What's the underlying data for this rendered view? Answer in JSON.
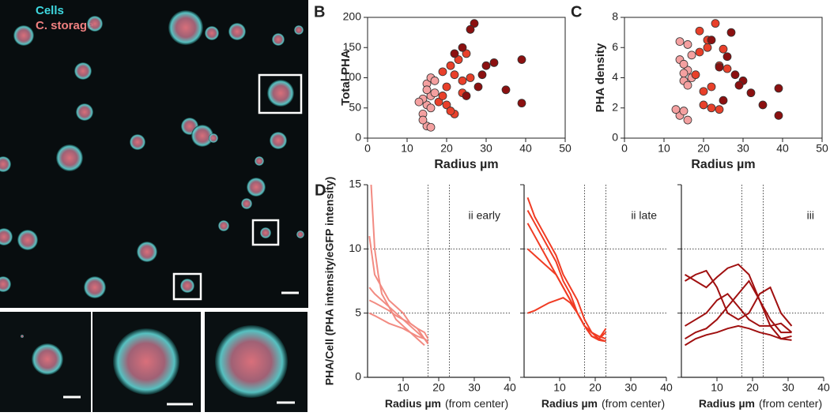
{
  "image": {
    "labels": [
      "Cells",
      "C. storage"
    ]
  },
  "chart_data": [
    {
      "type": "scatter",
      "panel": "B",
      "xlabel": "Radius µm",
      "ylabel": "Total PHA",
      "xlim": [
        0,
        50
      ],
      "ylim": [
        0,
        200
      ],
      "xticks": [
        0,
        10,
        20,
        30,
        40,
        50
      ],
      "yticks": [
        0,
        50,
        100,
        150,
        200
      ],
      "series": [
        {
          "color": "#f4a0a0",
          "x": [
            14,
            15,
            15,
            16,
            14,
            15,
            16,
            17,
            14,
            16,
            17,
            15,
            13,
            16
          ],
          "values": [
            40,
            20,
            55,
            70,
            65,
            90,
            100,
            75,
            30,
            50,
            95,
            80,
            60,
            18
          ]
        },
        {
          "color": "#e8402a",
          "x": [
            18,
            19,
            20,
            21,
            22,
            23,
            24,
            19,
            25,
            22,
            20,
            24,
            26,
            21
          ],
          "values": [
            60,
            110,
            85,
            120,
            40,
            130,
            95,
            70,
            140,
            105,
            55,
            75,
            100,
            45
          ]
        },
        {
          "color": "#8b1010",
          "x": [
            22,
            24,
            25,
            27,
            28,
            30,
            32,
            35,
            39,
            39,
            26,
            29
          ],
          "values": [
            140,
            150,
            70,
            190,
            85,
            120,
            125,
            80,
            130,
            58,
            180,
            105
          ]
        }
      ]
    },
    {
      "type": "scatter",
      "panel": "C",
      "xlabel": "Radius µm",
      "ylabel": "PHA density",
      "xlim": [
        0,
        50
      ],
      "ylim": [
        0,
        8
      ],
      "xticks": [
        0,
        10,
        20,
        30,
        40,
        50
      ],
      "yticks": [
        0,
        2,
        4,
        6,
        8
      ],
      "series": [
        {
          "color": "#f4a0a0",
          "x": [
            14,
            15,
            15,
            16,
            14,
            15,
            16,
            17,
            14,
            16,
            17,
            15,
            13,
            16
          ],
          "values": [
            1.5,
            1.8,
            3.8,
            4.5,
            5.2,
            4.9,
            6.2,
            4.0,
            6.4,
            3.5,
            5.5,
            4.3,
            1.9,
            1.2
          ]
        },
        {
          "color": "#e8402a",
          "x": [
            18,
            19,
            20,
            21,
            22,
            23,
            24,
            19,
            25,
            22,
            20,
            24,
            26,
            21
          ],
          "values": [
            4.2,
            5.7,
            3.1,
            6.5,
            2.0,
            7.6,
            4.8,
            7.1,
            5.9,
            3.4,
            2.2,
            1.9,
            4.6,
            6.0
          ]
        },
        {
          "color": "#8b1010",
          "x": [
            22,
            24,
            25,
            27,
            28,
            30,
            32,
            35,
            39,
            39,
            26,
            29
          ],
          "values": [
            6.5,
            4.7,
            2.5,
            7.0,
            4.2,
            3.8,
            3.0,
            2.2,
            3.3,
            1.5,
            5.4,
            3.5
          ]
        }
      ]
    },
    {
      "type": "line",
      "panel": "D",
      "xlabel": "Radius µm",
      "xlabel_note": "(from center)",
      "ylabel": "PHA/Cell (PHA intensity/eGFP intensity)",
      "xlim": [
        0,
        40
      ],
      "ylim": [
        0,
        15
      ],
      "xticks": [
        10,
        20,
        30,
        40
      ],
      "yticks": [
        0,
        5,
        10,
        15
      ],
      "grid": true,
      "vlines": [
        17,
        23
      ],
      "panels": [
        {
          "label": "ii early",
          "series": [
            {
              "color": "#f28b82",
              "x": [
                0.5,
                2,
                4,
                6,
                8,
                10,
                12,
                14,
                16,
                17
              ],
              "values": [
                11,
                8,
                7,
                6,
                5.5,
                5,
                4.2,
                3.8,
                3,
                2.6
              ]
            },
            {
              "color": "#f28b82",
              "x": [
                0.5,
                2,
                4,
                6,
                8,
                10,
                12,
                14,
                16,
                17
              ],
              "values": [
                7,
                6.5,
                6,
                5.5,
                5,
                4.5,
                4,
                3.5,
                3,
                2.8
              ]
            },
            {
              "color": "#f28b82",
              "x": [
                1,
                2,
                3,
                4,
                6,
                8,
                10,
                12,
                14,
                16
              ],
              "values": [
                15,
                10,
                8,
                6.5,
                5.5,
                4.5,
                4,
                3.5,
                3,
                2.5
              ]
            },
            {
              "color": "#f28b82",
              "x": [
                0.5,
                2,
                4,
                6,
                8,
                10,
                12,
                14,
                16,
                17
              ],
              "values": [
                5,
                4.8,
                4.5,
                4.2,
                4,
                3.8,
                3.5,
                3.2,
                3,
                2.7
              ]
            },
            {
              "color": "#f28b82",
              "x": [
                0.5,
                2,
                4,
                6,
                8,
                10,
                12,
                14,
                16,
                17
              ],
              "values": [
                6,
                5.8,
                5.5,
                5.2,
                4.8,
                4.5,
                4.2,
                3.8,
                3.5,
                3
              ]
            }
          ]
        },
        {
          "label": "ii late",
          "series": [
            {
              "color": "#f03c24",
              "x": [
                1,
                3,
                5,
                7,
                9,
                11,
                13,
                15,
                17,
                19,
                21,
                23
              ],
              "values": [
                14,
                12.5,
                11.5,
                10.5,
                9.5,
                8,
                7,
                6,
                4.5,
                3.5,
                3,
                2.8
              ]
            },
            {
              "color": "#f03c24",
              "x": [
                1,
                3,
                5,
                7,
                9,
                11,
                13,
                15,
                17,
                19,
                21,
                23
              ],
              "values": [
                13,
                12,
                11,
                10,
                9,
                7.5,
                6.5,
                5,
                4,
                3.2,
                2.9,
                2.8
              ]
            },
            {
              "color": "#f03c24",
              "x": [
                1,
                3,
                5,
                7,
                9,
                11,
                13,
                15,
                17,
                19,
                21,
                23
              ],
              "values": [
                12,
                11,
                10,
                9,
                8,
                7,
                6,
                5,
                4,
                3.5,
                3,
                3.5
              ]
            },
            {
              "color": "#f03c24",
              "x": [
                1,
                3,
                5,
                7,
                9,
                11,
                13,
                15,
                17,
                19,
                21,
                23
              ],
              "values": [
                5,
                5.2,
                5.5,
                5.8,
                6,
                6.2,
                5.8,
                5,
                4,
                3.5,
                3.2,
                3
              ]
            },
            {
              "color": "#f03c24",
              "x": [
                1,
                3,
                5,
                7,
                9,
                11,
                13,
                15,
                17,
                19,
                21,
                23
              ],
              "values": [
                10,
                9.5,
                9,
                8.5,
                8,
                7,
                6,
                5,
                4,
                3.2,
                3,
                3.8
              ]
            }
          ]
        },
        {
          "label": "iii",
          "series": [
            {
              "color": "#a01010",
              "x": [
                1,
                4,
                7,
                10,
                13,
                16,
                19,
                22,
                25,
                28,
                31
              ],
              "values": [
                8,
                7.5,
                7,
                7.8,
                8.5,
                8.8,
                8,
                6,
                4.5,
                3.5,
                3.5
              ]
            },
            {
              "color": "#a01010",
              "x": [
                1,
                4,
                7,
                10,
                13,
                16,
                19,
                22,
                25,
                28,
                31
              ],
              "values": [
                4,
                4.5,
                5,
                6,
                6.5,
                5.5,
                4.5,
                4,
                4,
                4.2,
                3.5
              ]
            },
            {
              "color": "#a01010",
              "x": [
                1,
                4,
                7,
                10,
                13,
                16,
                19,
                22,
                25,
                28,
                31
              ],
              "values": [
                3,
                3.5,
                3.8,
                4.5,
                5.5,
                6.5,
                7.5,
                6,
                4,
                3,
                3.2
              ]
            },
            {
              "color": "#a01010",
              "x": [
                1,
                4,
                7,
                10,
                13,
                16,
                19,
                22,
                25,
                28,
                31
              ],
              "values": [
                7.5,
                8,
                8.3,
                7,
                5,
                4.5,
                5,
                6.5,
                7,
                5,
                4
              ]
            },
            {
              "color": "#a01010",
              "x": [
                1,
                4,
                7,
                10,
                13,
                16,
                19,
                22,
                25,
                28,
                31
              ],
              "values": [
                2.5,
                3,
                3.3,
                3.5,
                3.8,
                4,
                3.8,
                3.5,
                3.3,
                3,
                2.9
              ]
            }
          ]
        }
      ]
    }
  ]
}
